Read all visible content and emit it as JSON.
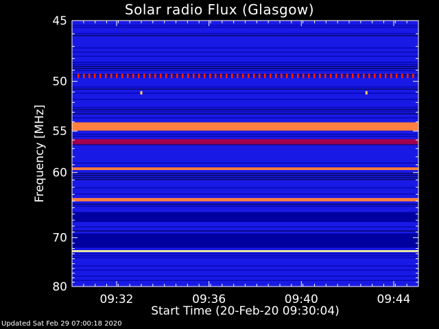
{
  "chart_data": {
    "type": "heatmap",
    "title": "Solar radio Flux (Glasgow)",
    "xlabel": "Start Time (20-Feb-20 09:30:04)",
    "ylabel": "Frequency [MHz]",
    "x_tick_labels": [
      "09:32",
      "09:36",
      "09:40",
      "09:44"
    ],
    "x_ticks_min": [
      1.93,
      5.93,
      9.93,
      13.93
    ],
    "xlim_min": [
      0,
      15
    ],
    "y_ticks": [
      45,
      50,
      55,
      60,
      70,
      80
    ],
    "y_tick_labels": [
      "45",
      "50",
      "55",
      "60",
      "70",
      "80"
    ],
    "ylim": [
      45,
      80
    ],
    "y_scale": "reciprocal",
    "background_color": "#1a1ae6",
    "colormap": [
      "#000033",
      "#0000a0",
      "#1e1ee6",
      "#a00050",
      "#ff2000",
      "#ff8040",
      "#ffff99"
    ],
    "bands": [
      {
        "freq": 49.5,
        "width_mhz": 0.4,
        "intensity": 0.7,
        "dashed": true
      },
      {
        "freq": 54.5,
        "width_mhz": 0.9,
        "intensity": 0.8
      },
      {
        "freq": 56.2,
        "width_mhz": 0.6,
        "intensity": 0.45
      },
      {
        "freq": 59.5,
        "width_mhz": 0.35,
        "intensity": 0.85
      },
      {
        "freq": 63.8,
        "width_mhz": 0.5,
        "intensity": 0.75
      },
      {
        "freq": 66.5,
        "width_mhz": 1.6,
        "intensity": 0.15
      },
      {
        "freq": 70.5,
        "width_mhz": 2.5,
        "intensity": 0.12
      },
      {
        "freq": 72.5,
        "width_mhz": 0.35,
        "intensity": 1.0
      }
    ],
    "spikes": [
      {
        "time_min": 3.0,
        "freq": 51.1
      },
      {
        "time_min": 12.75,
        "freq": 51.1
      }
    ]
  },
  "footer": {
    "updated": "Updated Sat Feb 29 07:00:18 2020"
  }
}
